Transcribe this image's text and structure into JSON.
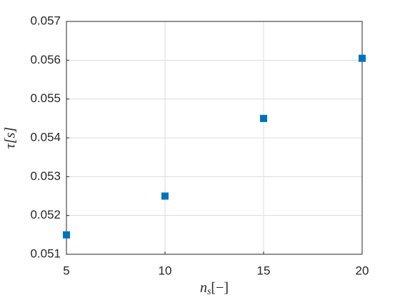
{
  "chart_data": {
    "type": "scatter",
    "x": [
      5,
      10,
      15,
      20
    ],
    "series": [
      {
        "color": "#0072bd",
        "values": [
          0.0515,
          0.0525,
          0.0545,
          0.05605
        ]
      }
    ],
    "xlim": [
      5,
      20
    ],
    "xticks": [
      5,
      10,
      15,
      20
    ],
    "ylim": [
      0.051,
      0.057
    ],
    "yticks": [
      0.051,
      0.052,
      0.053,
      0.054,
      0.055,
      0.056,
      0.057
    ],
    "grid": true,
    "xlabel": [
      "n",
      "s",
      "[−]"
    ],
    "ylabel": "τ[s]"
  }
}
